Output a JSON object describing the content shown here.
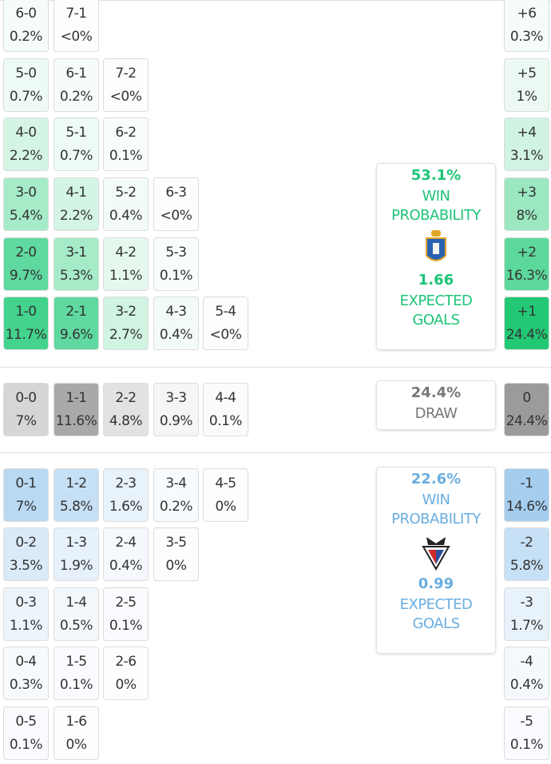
{
  "home": {
    "color": "#1dc476",
    "rows": [
      [
        {
          "score": "6-0",
          "pct": "0.2%",
          "color": "#f6fcf9"
        },
        {
          "score": "7-1",
          "pct": "<0%",
          "color": "#fbfefc"
        }
      ],
      [
        {
          "score": "5-0",
          "pct": "0.7%",
          "color": "#eefaf4"
        },
        {
          "score": "6-1",
          "pct": "0.2%",
          "color": "#f6fcf9"
        },
        {
          "score": "7-2",
          "pct": "<0%",
          "color": "#fbfefc"
        }
      ],
      [
        {
          "score": "4-0",
          "pct": "2.2%",
          "color": "#d4f5e4"
        },
        {
          "score": "5-1",
          "pct": "0.7%",
          "color": "#eefaf4"
        },
        {
          "score": "6-2",
          "pct": "0.1%",
          "color": "#f8fdfa"
        }
      ],
      [
        {
          "score": "3-0",
          "pct": "5.4%",
          "color": "#a6ebc8"
        },
        {
          "score": "4-1",
          "pct": "2.2%",
          "color": "#d4f5e4"
        },
        {
          "score": "5-2",
          "pct": "0.4%",
          "color": "#f3fbf7"
        },
        {
          "score": "6-3",
          "pct": "<0%",
          "color": "#fbfefc"
        }
      ],
      [
        {
          "score": "2-0",
          "pct": "9.7%",
          "color": "#5fd9a0"
        },
        {
          "score": "3-1",
          "pct": "5.3%",
          "color": "#a6ebc8"
        },
        {
          "score": "4-2",
          "pct": "1.1%",
          "color": "#e6f8ee"
        },
        {
          "score": "5-3",
          "pct": "0.1%",
          "color": "#f8fdfa"
        }
      ],
      [
        {
          "score": "1-0",
          "pct": "11.7%",
          "color": "#43d38d"
        },
        {
          "score": "2-1",
          "pct": "9.6%",
          "color": "#5fd9a0"
        },
        {
          "score": "3-2",
          "pct": "2.7%",
          "color": "#d0f3e2"
        },
        {
          "score": "4-3",
          "pct": "0.4%",
          "color": "#f3fbf7"
        },
        {
          "score": "5-4",
          "pct": "<0%",
          "color": "#fbfefc"
        }
      ]
    ],
    "margins": [
      {
        "label": "+6",
        "pct": "0.3%",
        "color": "#f6fcf9"
      },
      {
        "label": "+5",
        "pct": "1%",
        "color": "#ecf9f2"
      },
      {
        "label": "+4",
        "pct": "3.1%",
        "color": "#d0f3e2"
      },
      {
        "label": "+3",
        "pct": "8%",
        "color": "#9ae7c0"
      },
      {
        "label": "+2",
        "pct": "16.3%",
        "color": "#5cd89c"
      },
      {
        "label": "+1",
        "pct": "24.4%",
        "color": "#22c874"
      }
    ],
    "win_probability": "53.1%",
    "win_label": "WIN PROBABILITY",
    "expected_goals": "1.66",
    "xg_label": "EXPECTED GOALS"
  },
  "draw": {
    "color": "#777777",
    "row": [
      {
        "score": "0-0",
        "pct": "7%",
        "color": "#d6d6d6"
      },
      {
        "score": "1-1",
        "pct": "11.6%",
        "color": "#a9a9a9"
      },
      {
        "score": "2-2",
        "pct": "4.8%",
        "color": "#e2e2e2"
      },
      {
        "score": "3-3",
        "pct": "0.9%",
        "color": "#f5f5f5"
      },
      {
        "score": "4-4",
        "pct": "0.1%",
        "color": "#fbfbfb"
      }
    ],
    "margin": {
      "label": "0",
      "pct": "24.4%",
      "color": "#9b9b9b"
    },
    "probability": "24.4%",
    "label": "DRAW"
  },
  "away": {
    "color": "#6aaee0",
    "rows": [
      [
        {
          "score": "0-1",
          "pct": "7%",
          "color": "#b9d9f3"
        },
        {
          "score": "1-2",
          "pct": "5.8%",
          "color": "#c6e0f5"
        },
        {
          "score": "2-3",
          "pct": "1.6%",
          "color": "#e8f2fb"
        },
        {
          "score": "3-4",
          "pct": "0.2%",
          "color": "#f8fbfe"
        },
        {
          "score": "4-5",
          "pct": "0%",
          "color": "#fbfdfe"
        }
      ],
      [
        {
          "score": "0-2",
          "pct": "3.5%",
          "color": "#dbeaf8"
        },
        {
          "score": "1-3",
          "pct": "1.9%",
          "color": "#e6f1fb"
        },
        {
          "score": "2-4",
          "pct": "0.4%",
          "color": "#f5f9fd"
        },
        {
          "score": "3-5",
          "pct": "0%",
          "color": "#fbfdfe"
        }
      ],
      [
        {
          "score": "0-3",
          "pct": "1.1%",
          "color": "#edf5fc"
        },
        {
          "score": "1-4",
          "pct": "0.5%",
          "color": "#f3f8fd"
        },
        {
          "score": "2-5",
          "pct": "0.1%",
          "color": "#f9fbfe"
        }
      ],
      [
        {
          "score": "0-4",
          "pct": "0.3%",
          "color": "#f6fafd"
        },
        {
          "score": "1-5",
          "pct": "0.1%",
          "color": "#f9fbfe"
        },
        {
          "score": "2-6",
          "pct": "0%",
          "color": "#fbfdfe"
        }
      ],
      [
        {
          "score": "0-5",
          "pct": "0.1%",
          "color": "#f9fbfe"
        },
        {
          "score": "1-6",
          "pct": "0%",
          "color": "#fbfdfe"
        }
      ]
    ],
    "margins": [
      {
        "label": "-1",
        "pct": "14.6%",
        "color": "#a4cdee"
      },
      {
        "label": "-2",
        "pct": "5.8%",
        "color": "#c6e0f5"
      },
      {
        "label": "-3",
        "pct": "1.7%",
        "color": "#e8f2fb"
      },
      {
        "label": "-4",
        "pct": "0.4%",
        "color": "#f5f9fd"
      },
      {
        "label": "-5",
        "pct": "0.1%",
        "color": "#f9fbfe"
      }
    ],
    "win_probability": "22.6%",
    "win_label": "WIN PROBABILITY",
    "expected_goals": "0.99",
    "xg_label": "EXPECTED GOALS"
  }
}
